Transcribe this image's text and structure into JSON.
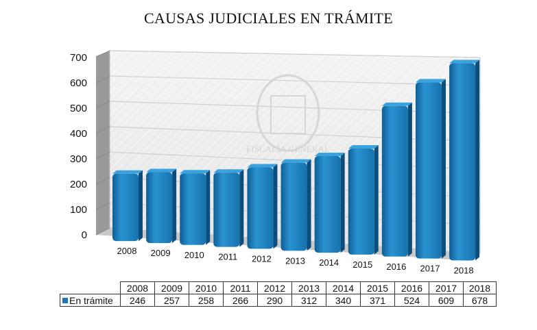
{
  "chart_data": {
    "type": "bar",
    "title": "CAUSAS JUDICIALES EN TRÁMITE",
    "categories": [
      "2008",
      "2009",
      "2010",
      "2011",
      "2012",
      "2013",
      "2014",
      "2015",
      "2016",
      "2017",
      "2018"
    ],
    "series": [
      {
        "name": "En trámite",
        "values": [
          246,
          257,
          258,
          266,
          290,
          312,
          340,
          371,
          524,
          609,
          678
        ],
        "color": "#1f7ec0"
      }
    ],
    "ylim": [
      0,
      700
    ],
    "yticks": [
      "0",
      "100",
      "200",
      "300",
      "400",
      "500",
      "600",
      "700"
    ],
    "grid": true,
    "style": "3d-column",
    "data_table": true,
    "watermark_text": "FISCALÍA GENERAL"
  }
}
